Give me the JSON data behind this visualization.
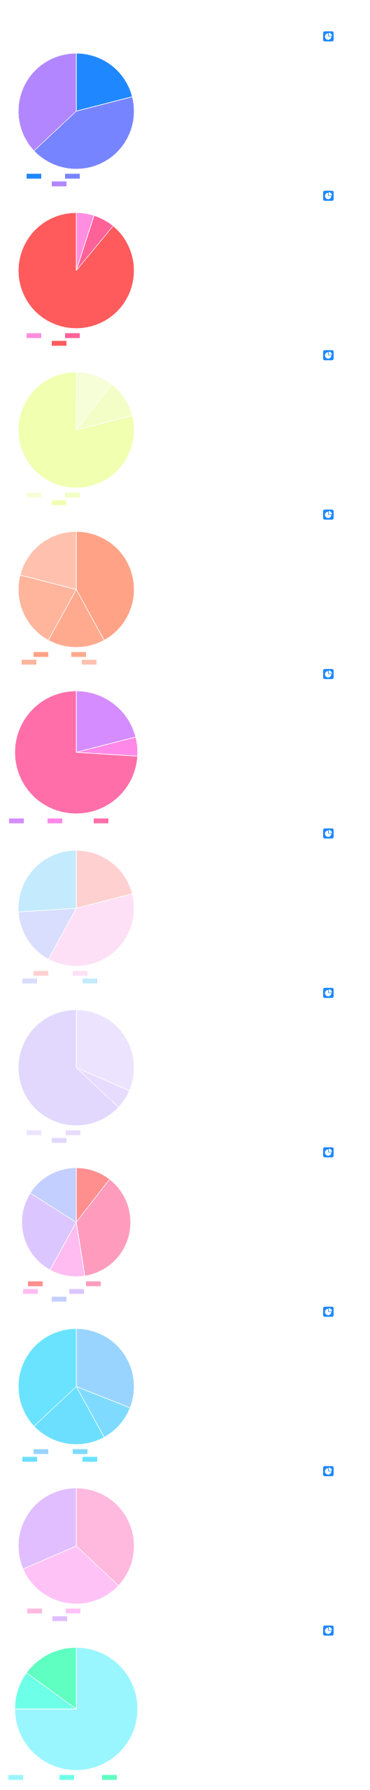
{
  "chart_data": [
    {
      "type": "pie",
      "categories": [
        null,
        null,
        null
      ],
      "values": [
        21,
        42,
        37
      ],
      "colors": [
        "#1f87ff",
        "#7784ff",
        "#b186ff"
      ]
    },
    {
      "type": "pie",
      "categories": [
        null,
        null,
        null
      ],
      "values": [
        5,
        6,
        89
      ],
      "colors": [
        "#ff8ee0",
        "#ff6199",
        "#ff5a5c"
      ]
    },
    {
      "type": "pie",
      "categories": [
        null,
        null,
        null
      ],
      "values": [
        10.5,
        10.5,
        79
      ],
      "colors": [
        "#f6fed8",
        "#f3fec6",
        "#f0ffb0"
      ]
    },
    {
      "type": "pie",
      "categories": [
        null,
        null,
        null,
        null
      ],
      "values": [
        42,
        16,
        21,
        21
      ],
      "colors": [
        "#ffa285",
        "#ffaa8f",
        "#ffb49c",
        "#ffc1ae"
      ]
    },
    {
      "type": "pie",
      "categories": [
        null,
        null,
        null
      ],
      "values": [
        21,
        5,
        74
      ],
      "colors": [
        "#d48cff",
        "#ff88e8",
        "#ff6ea8"
      ]
    },
    {
      "type": "pie",
      "categories": [
        null,
        null,
        null,
        null
      ],
      "values": [
        21,
        37,
        16,
        26
      ],
      "colors": [
        "#ffd0d0",
        "#fde0f6",
        "#d9ddfe",
        "#c3eafd"
      ]
    },
    {
      "type": "pie",
      "categories": [
        null,
        null,
        null
      ],
      "values": [
        31.5,
        5.5,
        63
      ],
      "colors": [
        "#ece4fe",
        "#e7dcfd",
        "#e2d7fd"
      ]
    },
    {
      "type": "pie",
      "categories": [
        null,
        null,
        null,
        null,
        null
      ],
      "values": [
        10.5,
        37,
        10.5,
        26,
        16
      ],
      "colors": [
        "#ff8e8e",
        "#ff9cbd",
        "#ffbcf0",
        "#dcc6ff",
        "#c2cfff"
      ]
    },
    {
      "type": "pie",
      "categories": [
        null,
        null,
        null,
        null
      ],
      "values": [
        31,
        11,
        21,
        37
      ],
      "colors": [
        "#98d4ff",
        "#7edbff",
        "#6cdfff",
        "#69e3ff"
      ]
    },
    {
      "type": "pie",
      "categories": [
        null,
        null,
        null
      ],
      "values": [
        37,
        31.5,
        31.5
      ],
      "colors": [
        "#ffb8de",
        "#ffc2f6",
        "#e0beff"
      ]
    },
    {
      "type": "pie",
      "categories": [
        null,
        null,
        null
      ],
      "values": [
        75,
        10,
        15
      ],
      "colors": [
        "#99f6ff",
        "#6effe8",
        "#5effc0"
      ]
    }
  ]
}
